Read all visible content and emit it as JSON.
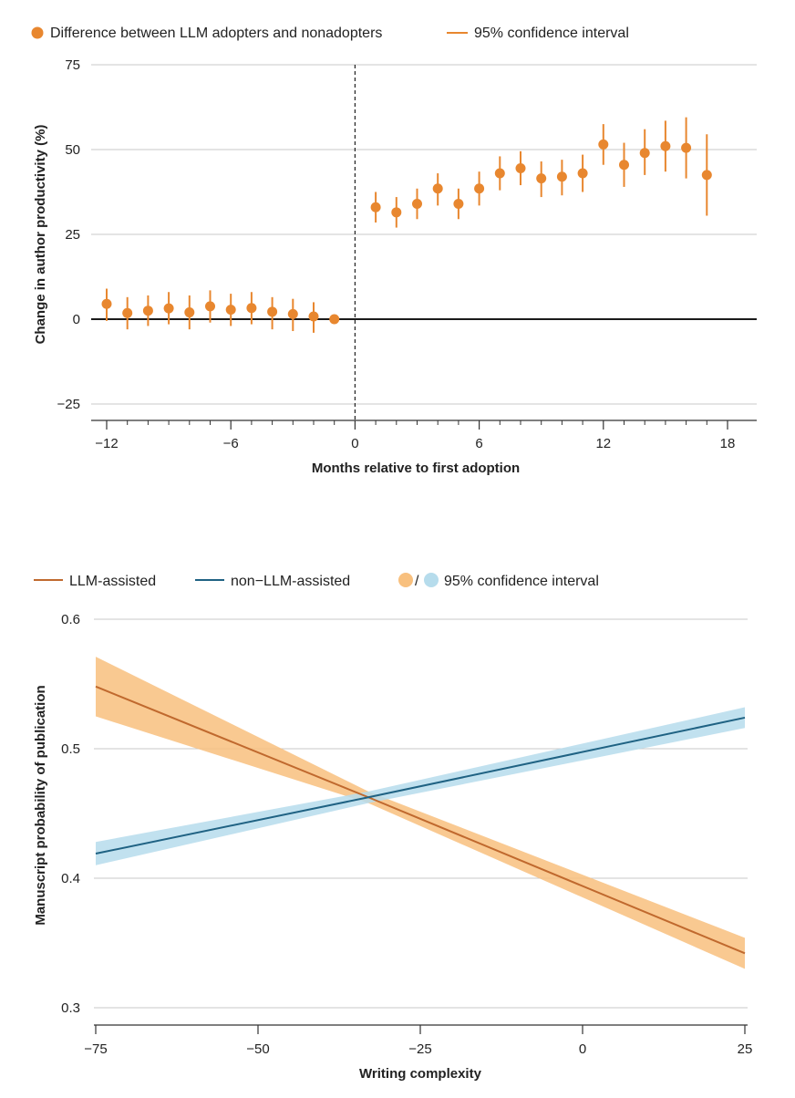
{
  "colors": {
    "point": "#e8872f",
    "llm_line": "#c0692e",
    "llm_band": "#f8c07e",
    "non_llm_line": "#1f6283",
    "non_llm_band": "#b6dcec",
    "grid": "#c8c8c8",
    "zero_line": "#1a1a1a",
    "axis": "#333333"
  },
  "chart_data": [
    {
      "type": "scatter",
      "title": "",
      "xlabel": "Months relative to first adoption",
      "ylabel": "Change in author productivity (%)",
      "xlim": [
        -13,
        20
      ],
      "ylim": [
        -27,
        75
      ],
      "xticks": [
        -12,
        -6,
        0,
        6,
        12,
        18
      ],
      "xtick_labels": [
        "−12",
        "−6",
        "0",
        "6",
        "12",
        "18"
      ],
      "yticks": [
        75,
        50,
        25,
        0,
        -25
      ],
      "ytick_labels": [
        "75",
        "50",
        "25",
        "0",
        "−25"
      ],
      "minor_xticks": [
        -11,
        -10,
        -9,
        -8,
        -7,
        -5,
        -4,
        -3,
        -2,
        -1,
        1,
        2,
        3,
        4,
        5,
        7,
        8,
        9,
        10,
        11,
        13,
        14,
        15,
        16,
        17
      ],
      "vline_x": 0,
      "grid": true,
      "legend": [
        {
          "label": "Difference between LLM adopters and nonadopters",
          "marker": "dot"
        },
        {
          "label": "95% confidence interval",
          "marker": "line"
        }
      ],
      "series": [
        {
          "name": "Difference between LLM adopters and nonadopters",
          "x": [
            -12,
            -11,
            -10,
            -9,
            -8,
            -7,
            -6,
            -5,
            -4,
            -3,
            -2,
            -1,
            1,
            2,
            3,
            4,
            5,
            6,
            7,
            8,
            9,
            10,
            11,
            12,
            13,
            14,
            15,
            16,
            17
          ],
          "y": [
            4.5,
            1.8,
            2.5,
            3.2,
            2.0,
            3.8,
            2.8,
            3.3,
            2.2,
            1.5,
            0.8,
            0,
            33,
            31.5,
            34,
            38.5,
            34,
            38.5,
            43,
            44.5,
            41.5,
            42,
            43,
            51.5,
            45.5,
            49,
            51,
            50.5,
            42.5
          ],
          "ci_low": [
            -0.5,
            -3,
            -2,
            -1.5,
            -3,
            -1,
            -2,
            -1.5,
            -3,
            -3.5,
            -4,
            0,
            28.5,
            27,
            29.5,
            33.5,
            29.5,
            33.5,
            38,
            39.5,
            36,
            36.5,
            37.5,
            45.5,
            39,
            42.5,
            43.5,
            41.5,
            30.5
          ],
          "ci_high": [
            9,
            6.5,
            7,
            8,
            7,
            8.5,
            7.5,
            8,
            6.5,
            6,
            5,
            0,
            37.5,
            36,
            38.5,
            43,
            38.5,
            43.5,
            48,
            49.5,
            46.5,
            47,
            48.5,
            57.5,
            52,
            56,
            58.5,
            59.5,
            54.5
          ]
        }
      ]
    },
    {
      "type": "line",
      "title": "",
      "xlabel": "Writing complexity",
      "ylabel": "Manuscript probability of publication",
      "xlim": [
        -75,
        25
      ],
      "ylim": [
        0.3,
        0.6
      ],
      "xticks": [
        -75,
        -50,
        -25,
        0,
        25
      ],
      "xtick_labels": [
        "−75",
        "−50",
        "−25",
        "0",
        "25"
      ],
      "yticks": [
        0.6,
        0.5,
        0.4,
        0.3
      ],
      "ytick_labels": [
        "0.6",
        "0.5",
        "0.4",
        "0.3"
      ],
      "grid": true,
      "legend": [
        {
          "label": "LLM-assisted",
          "marker": "line"
        },
        {
          "label": "non−LLM-assisted",
          "marker": "line"
        },
        {
          "label": "95% confidence interval",
          "marker": "band-pair",
          "separator": "/"
        }
      ],
      "series": [
        {
          "name": "LLM-assisted",
          "x": [
            -75,
            -33,
            25
          ],
          "y": [
            0.548,
            0.4625,
            0.342
          ],
          "ci_low": [
            0.525,
            0.458,
            0.33
          ],
          "ci_high": [
            0.571,
            0.467,
            0.354
          ]
        },
        {
          "name": "non−LLM-assisted",
          "x": [
            -75,
            -33,
            25
          ],
          "y": [
            0.419,
            0.4625,
            0.524
          ],
          "ci_low": [
            0.41,
            0.458,
            0.516
          ],
          "ci_high": [
            0.428,
            0.467,
            0.532
          ]
        }
      ]
    }
  ]
}
